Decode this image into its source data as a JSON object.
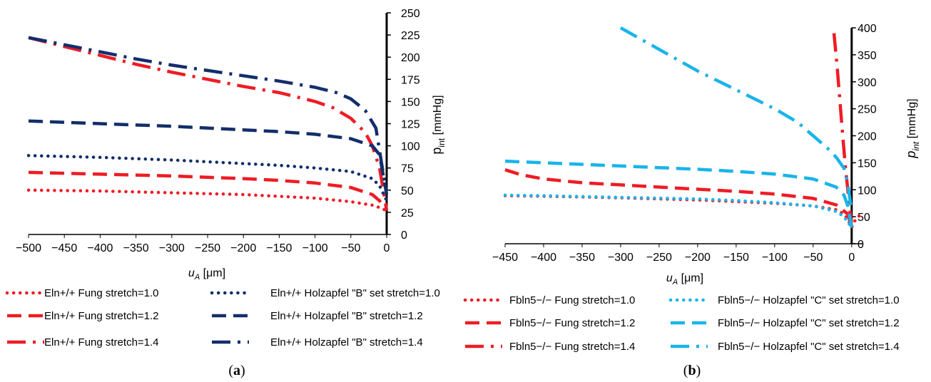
{
  "figure": {
    "panels": [
      "(a)",
      "(b)"
    ]
  },
  "chart_data": [
    {
      "type": "line",
      "panel": "(a)",
      "xlabel_main": "u",
      "xlabel_sub": "A",
      "xlabel_unit": " [μm]",
      "ylabel_main": "p",
      "ylabel_sub": "int",
      "ylabel_unit": " [mmHg]",
      "xlim": [
        -500,
        0
      ],
      "ylim": [
        0,
        250
      ],
      "xticks": [
        -500,
        -450,
        -400,
        -350,
        -300,
        -250,
        -200,
        -150,
        -100,
        -50,
        0
      ],
      "xtick_labels": [
        "−500",
        "−450",
        "−400",
        "−350",
        "−300",
        "−250",
        "−200",
        "−150",
        "−100",
        "−50",
        "0"
      ],
      "yticks": [
        0,
        25,
        50,
        75,
        100,
        125,
        150,
        175,
        200,
        225,
        250
      ],
      "ytick_labels": [
        "0",
        "25",
        "50",
        "75",
        "100",
        "125",
        "150",
        "175",
        "200",
        "225",
        "250"
      ],
      "series": [
        {
          "name": "Eln+/+ Fung stretch=1.0",
          "color": "#ee1c25",
          "style": "dot",
          "x": [
            -500,
            -400,
            -300,
            -200,
            -150,
            -100,
            -50,
            -20,
            -5,
            0
          ],
          "y": [
            50,
            49,
            47,
            45,
            43,
            41,
            37,
            33,
            29,
            26
          ]
        },
        {
          "name": "Eln+/+ Fung stretch=1.2",
          "color": "#ee1c25",
          "style": "dash",
          "x": [
            -500,
            -400,
            -300,
            -200,
            -150,
            -100,
            -50,
            -20,
            -10,
            0
          ],
          "y": [
            70,
            68,
            66,
            63,
            61,
            58,
            53,
            45,
            38,
            27
          ]
        },
        {
          "name": "Eln+/+ Fung stretch=1.4",
          "color": "#ee1c25",
          "style": "dashdot",
          "x": [
            -500,
            -450,
            -400,
            -350,
            -300,
            -250,
            -200,
            -150,
            -100,
            -75,
            -50,
            -30,
            -20,
            -10,
            0
          ],
          "y": [
            222,
            212,
            202,
            192,
            183,
            175,
            167,
            160,
            150,
            143,
            131,
            115,
            100,
            75,
            27
          ]
        },
        {
          "name": "Eln+/+ Holzapfel \"B\" set stretch=1.0",
          "color": "#132e6b",
          "style": "dot",
          "x": [
            -500,
            -400,
            -300,
            -200,
            -150,
            -100,
            -50,
            -20,
            -10,
            0
          ],
          "y": [
            89,
            87,
            84,
            80,
            78,
            75,
            71,
            63,
            55,
            38
          ]
        },
        {
          "name": "Eln+/+ Holzapfel \"B\" stretch=1.2",
          "color": "#132e6b",
          "style": "dash",
          "x": [
            -500,
            -400,
            -300,
            -200,
            -150,
            -100,
            -50,
            -20,
            -10,
            0
          ],
          "y": [
            128,
            125,
            122,
            118,
            116,
            113,
            108,
            100,
            90,
            45
          ]
        },
        {
          "name": "Eln+/+ Holzapfel \"B\" stretch=1.4",
          "color": "#132e6b",
          "style": "dashdot",
          "x": [
            -500,
            -450,
            -400,
            -350,
            -300,
            -250,
            -200,
            -150,
            -100,
            -70,
            -50,
            -30,
            -15,
            0
          ],
          "y": [
            222,
            214,
            206,
            198,
            191,
            185,
            179,
            173,
            166,
            160,
            153,
            140,
            120,
            45
          ]
        }
      ]
    },
    {
      "type": "line",
      "panel": "(b)",
      "xlabel_main": "u",
      "xlabel_sub": "A",
      "xlabel_unit": " [μm]",
      "ylabel_main": "p",
      "ylabel_sub": "int",
      "ylabel_unit": " [mmHg]",
      "xlim": [
        -450,
        15
      ],
      "ylim": [
        0,
        400
      ],
      "xticks": [
        -450,
        -400,
        -350,
        -300,
        -250,
        -200,
        -150,
        -100,
        -50,
        0
      ],
      "xtick_labels": [
        "−450",
        "−400",
        "−350",
        "−300",
        "−250",
        "−200",
        "−150",
        "−100",
        "−50",
        "0"
      ],
      "yticks": [
        0,
        50,
        100,
        150,
        200,
        250,
        300,
        350,
        400
      ],
      "ytick_labels": [
        "0",
        "50",
        "100",
        "150",
        "200",
        "250",
        "300",
        "350",
        "400"
      ],
      "series": [
        {
          "name": "Fbln5−/− Fung stretch=1.0",
          "color": "#ee1c25",
          "style": "dot",
          "x": [
            -450,
            -400,
            -300,
            -200,
            -150,
            -100,
            -50,
            -20,
            -10,
            -5,
            0,
            5,
            10,
            15
          ],
          "y": [
            89,
            88,
            85,
            81,
            78,
            75,
            70,
            63,
            55,
            45,
            30,
            45,
            52,
            55
          ]
        },
        {
          "name": "Fbln5−/− Fung stretch=1.2",
          "color": "#ee1c25",
          "style": "dash",
          "x": [
            -450,
            -430,
            -400,
            -350,
            -300,
            -250,
            -200,
            -150,
            -100,
            -50,
            -20,
            -5,
            0
          ],
          "y": [
            137,
            128,
            120,
            113,
            109,
            105,
            101,
            97,
            92,
            84,
            72,
            55,
            30
          ]
        },
        {
          "name": "Fbln5−/− Fung stretch=1.4",
          "color": "#ee1c25",
          "style": "dashdot",
          "x": [
            -23,
            -19,
            -15,
            -11,
            -8,
            -5,
            -2,
            0
          ],
          "y": [
            390,
            330,
            260,
            190,
            140,
            100,
            60,
            30
          ]
        },
        {
          "name": "Fbln5−/− Holzapfel \"C\" set stretch=1.0",
          "color": "#1ab4ea",
          "style": "dot",
          "x": [
            -450,
            -400,
            -300,
            -200,
            -150,
            -100,
            -50,
            -20,
            -10,
            0
          ],
          "y": [
            90,
            89,
            86,
            83,
            80,
            76,
            70,
            60,
            50,
            30
          ]
        },
        {
          "name": "Fbln5−/− Holzapfel \"C\" set stretch=1.2",
          "color": "#1ab4ea",
          "style": "dash",
          "x": [
            -450,
            -400,
            -350,
            -300,
            -250,
            -200,
            -150,
            -100,
            -50,
            -20,
            -10,
            -5,
            0
          ],
          "y": [
            153,
            150,
            147,
            144,
            141,
            138,
            134,
            129,
            120,
            105,
            90,
            70,
            30
          ]
        },
        {
          "name": "Fbln5−/− Holzapfel \"C\" set stretch=1.4",
          "color": "#1ab4ea",
          "style": "dashdot",
          "x": [
            -300,
            -250,
            -200,
            -150,
            -100,
            -70,
            -50,
            -30,
            -20,
            -15,
            -10,
            -5,
            0
          ],
          "y": [
            400,
            360,
            320,
            285,
            250,
            225,
            200,
            175,
            160,
            150,
            140,
            110,
            60
          ]
        }
      ]
    }
  ]
}
